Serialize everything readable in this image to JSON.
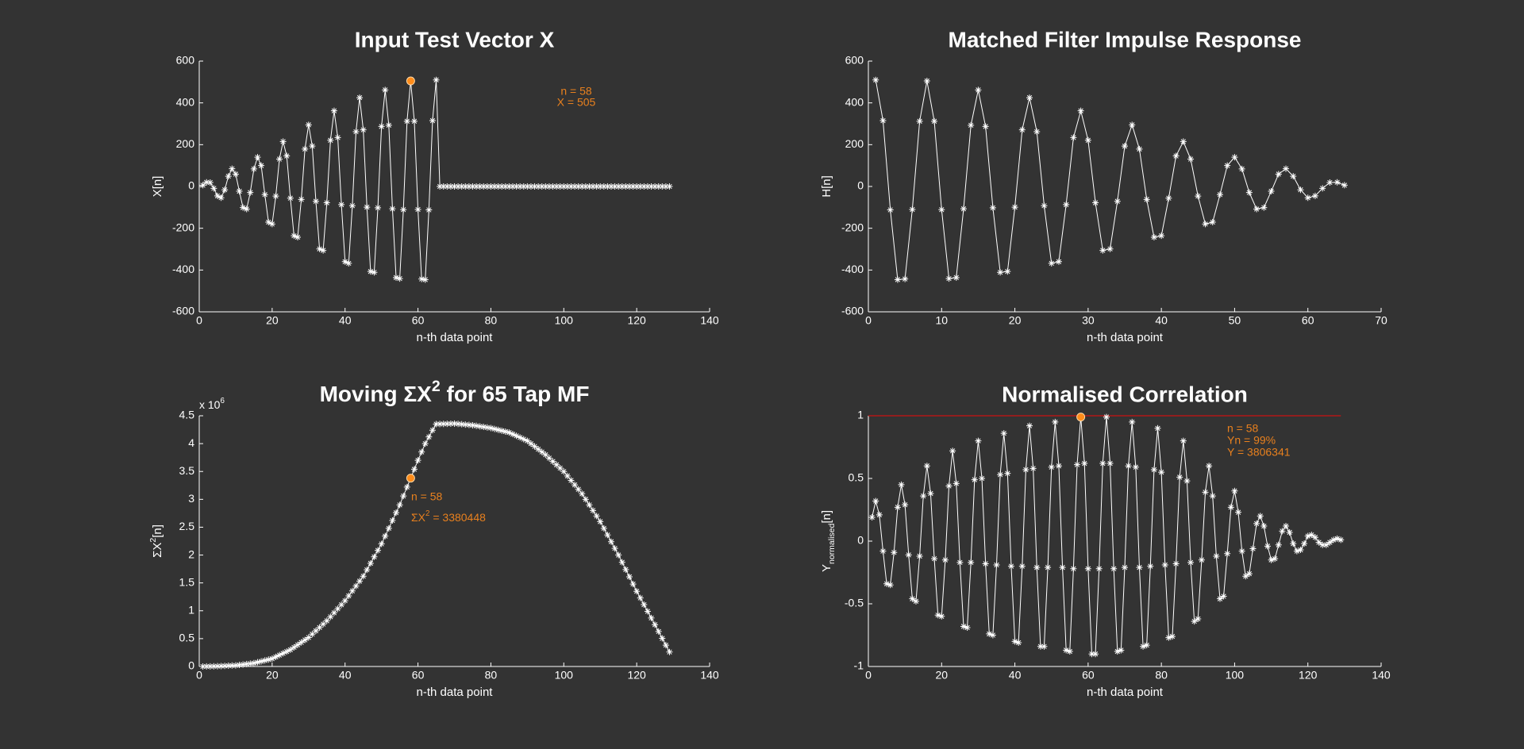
{
  "chart_data": [
    {
      "type": "line",
      "title": "Input Test Vector X",
      "xlabel": "n-th data point",
      "ylabel": "X[n]",
      "color": "#ffffff",
      "point_marker": "asterisk",
      "x": [
        1,
        2,
        3,
        4,
        5,
        6,
        7,
        8,
        9,
        10,
        11,
        12,
        13,
        14,
        15,
        16,
        17,
        18,
        19,
        20,
        21,
        22,
        23,
        24,
        25,
        26,
        27,
        28,
        29,
        30,
        31,
        32,
        33,
        34,
        35,
        36,
        37,
        38,
        39,
        40,
        41,
        42,
        43,
        44,
        45,
        46,
        47,
        48,
        49,
        50,
        51,
        52,
        53,
        54,
        55,
        56,
        57,
        58,
        59,
        60,
        61,
        62,
        63,
        64,
        65,
        66,
        67,
        68,
        69,
        70,
        71,
        72,
        73,
        74,
        75,
        76,
        77,
        78,
        79,
        80,
        81,
        82,
        83,
        84,
        85,
        86,
        87,
        88,
        89,
        90,
        91,
        92,
        93,
        94,
        95,
        96,
        97,
        98,
        99,
        100,
        101,
        102,
        103,
        104,
        105,
        106,
        107,
        108,
        109,
        110,
        111,
        112,
        113,
        114,
        115,
        116,
        117,
        118,
        119,
        120,
        121,
        122,
        123,
        124,
        125,
        126,
        127,
        128,
        129
      ],
      "values": [
        6,
        20,
        19,
        -9,
        -45,
        -54,
        -16,
        49,
        85,
        59,
        -23,
        -101,
        -108,
        -29,
        84,
        140,
        100,
        -39,
        -171,
        -180,
        -46,
        131,
        215,
        146,
        -56,
        -236,
        -243,
        -62,
        179,
        295,
        193,
        -71,
        -299,
        -306,
        -78,
        221,
        362,
        234,
        -87,
        -360,
        -368,
        -92,
        262,
        425,
        271,
        -99,
        -407,
        -411,
        -102,
        287,
        462,
        293,
        -107,
        -436,
        -441,
        -111,
        312,
        505,
        312,
        -110,
        -443,
        -446,
        -112,
        315,
        510,
        0,
        0,
        0,
        0,
        0,
        0,
        0,
        0,
        0,
        0,
        0,
        0,
        0,
        0,
        0,
        0,
        0,
        0,
        0,
        0,
        0,
        0,
        0,
        0,
        0,
        0,
        0,
        0,
        0,
        0,
        0,
        0,
        0,
        0,
        0,
        0,
        0,
        0,
        0,
        0,
        0,
        0,
        0,
        0,
        0,
        0,
        0,
        0,
        0,
        0,
        0,
        0,
        0,
        0,
        0,
        0,
        0,
        0,
        0,
        0,
        0,
        0,
        0,
        0
      ],
      "xlim": [
        0,
        140
      ],
      "xticks": [
        0,
        20,
        40,
        60,
        80,
        100,
        120,
        140
      ],
      "ylim": [
        -600,
        600
      ],
      "yticks": [
        -600,
        -400,
        -200,
        0,
        200,
        400,
        600
      ],
      "highlight": {
        "x": 58,
        "y": 505,
        "color": "#ff8c1a"
      },
      "annotation": [
        "n = 58",
        "X = 505"
      ]
    },
    {
      "type": "line",
      "title": "Matched Filter Impulse Response",
      "xlabel": "n-th data point",
      "ylabel": "H[n]",
      "color": "#ffffff",
      "point_marker": "asterisk",
      "x": [
        1,
        2,
        3,
        4,
        5,
        6,
        7,
        8,
        9,
        10,
        11,
        12,
        13,
        14,
        15,
        16,
        17,
        18,
        19,
        20,
        21,
        22,
        23,
        24,
        25,
        26,
        27,
        28,
        29,
        30,
        31,
        32,
        33,
        34,
        35,
        36,
        37,
        38,
        39,
        40,
        41,
        42,
        43,
        44,
        45,
        46,
        47,
        48,
        49,
        50,
        51,
        52,
        53,
        54,
        55,
        56,
        57,
        58,
        59,
        60,
        61,
        62,
        63,
        64,
        65
      ],
      "values": [
        510,
        315,
        -112,
        -446,
        -443,
        -110,
        312,
        505,
        312,
        -111,
        -441,
        -436,
        -107,
        293,
        462,
        287,
        -102,
        -411,
        -407,
        -99,
        271,
        425,
        262,
        -92,
        -368,
        -360,
        -87,
        234,
        362,
        221,
        -78,
        -306,
        -299,
        -71,
        193,
        295,
        179,
        -62,
        -243,
        -236,
        -56,
        146,
        215,
        131,
        -46,
        -180,
        -171,
        -39,
        100,
        140,
        84,
        -29,
        -108,
        -101,
        -23,
        59,
        85,
        49,
        -16,
        -54,
        -45,
        -9,
        19,
        20,
        6
      ],
      "xlim": [
        0,
        70
      ],
      "xticks": [
        0,
        10,
        20,
        30,
        40,
        50,
        60,
        70
      ],
      "ylim": [
        -600,
        600
      ],
      "yticks": [
        -600,
        -400,
        -200,
        0,
        200,
        400,
        600
      ]
    },
    {
      "type": "line",
      "title": [
        {
          "text": "Moving ΣX"
        },
        {
          "sup": "2"
        },
        {
          "text": " for 65 Tap MF"
        }
      ],
      "xlabel": "n-th data point",
      "ylabel": [
        {
          "text": "ΣX"
        },
        {
          "sup": "2"
        },
        {
          "text": "[n]"
        }
      ],
      "y_multiplier": [
        {
          "text": "x 10"
        },
        {
          "sup": "6"
        }
      ],
      "color": "#ffffff",
      "point_marker": "asterisk",
      "x": [
        1,
        2,
        3,
        4,
        5,
        6,
        7,
        8,
        9,
        10,
        11,
        12,
        13,
        14,
        15,
        16,
        17,
        18,
        19,
        20,
        21,
        22,
        23,
        24,
        25,
        26,
        27,
        28,
        29,
        30,
        31,
        32,
        33,
        34,
        35,
        36,
        37,
        38,
        39,
        40,
        41,
        42,
        43,
        44,
        45,
        46,
        47,
        48,
        49,
        50,
        51,
        52,
        53,
        54,
        55,
        56,
        57,
        58,
        59,
        60,
        61,
        62,
        63,
        64,
        65,
        66,
        67,
        68,
        69,
        70,
        71,
        72,
        73,
        74,
        75,
        76,
        77,
        78,
        79,
        80,
        81,
        82,
        83,
        84,
        85,
        86,
        87,
        88,
        89,
        90,
        91,
        92,
        93,
        94,
        95,
        96,
        97,
        98,
        99,
        100,
        101,
        102,
        103,
        104,
        105,
        106,
        107,
        108,
        109,
        110,
        111,
        112,
        113,
        114,
        115,
        116,
        117,
        118,
        119,
        120,
        121,
        122,
        123,
        124,
        125,
        126,
        127,
        128,
        129
      ],
      "values": [
        0,
        1000,
        2000,
        4000,
        5000,
        8000,
        11000,
        14000,
        17000,
        20000,
        28000,
        36000,
        44000,
        52000,
        60000,
        76000,
        92000,
        108000,
        124000,
        140000,
        172000,
        204000,
        236000,
        268000,
        300000,
        344000,
        388000,
        432000,
        476000,
        520000,
        580000,
        640000,
        700000,
        760000,
        820000,
        892000,
        964000,
        1036000,
        1108000,
        1180000,
        1268000,
        1356000,
        1444000,
        1532000,
        1620000,
        1736000,
        1852000,
        1968000,
        2084000,
        2200000,
        2340000,
        2480000,
        2620000,
        2760000,
        2900000,
        3060000,
        3220000,
        3380448,
        3540000,
        3700000,
        3850000,
        4000000,
        4120000,
        4240000,
        4350000,
        4352000,
        4354000,
        4356000,
        4358000,
        4360000,
        4354000,
        4348000,
        4342000,
        4336000,
        4330000,
        4320000,
        4310000,
        4300000,
        4290000,
        4280000,
        4264000,
        4248000,
        4232000,
        4216000,
        4200000,
        4170000,
        4140000,
        4110000,
        4080000,
        4050000,
        4000000,
        3950000,
        3900000,
        3850000,
        3800000,
        3740000,
        3680000,
        3620000,
        3560000,
        3500000,
        3420000,
        3340000,
        3260000,
        3180000,
        3100000,
        3000000,
        2900000,
        2800000,
        2700000,
        2600000,
        2480000,
        2360000,
        2240000,
        2120000,
        2000000,
        1870000,
        1740000,
        1610000,
        1480000,
        1350000,
        1230000,
        1110000,
        990000,
        870000,
        750000,
        628000,
        505000,
        383000,
        260000
      ],
      "xlim": [
        0,
        140
      ],
      "xticks": [
        0,
        20,
        40,
        60,
        80,
        100,
        120,
        140
      ],
      "ylim": [
        0,
        4500000
      ],
      "yticks": [
        0,
        {
          "value": 500000,
          "label": "0.5"
        },
        {
          "value": 1000000,
          "label": "1"
        },
        {
          "value": 1500000,
          "label": "1.5"
        },
        {
          "value": 2000000,
          "label": "2"
        },
        {
          "value": 2500000,
          "label": "2.5"
        },
        {
          "value": 3000000,
          "label": "3"
        },
        {
          "value": 3500000,
          "label": "3.5"
        },
        {
          "value": 4000000,
          "label": "4"
        },
        {
          "value": 4500000,
          "label": "4.5"
        }
      ],
      "highlight": {
        "x": 58,
        "y": 3380448,
        "color": "#ff8c1a"
      },
      "annotation": [
        "n = 58",
        [
          {
            "text": "ΣX"
          },
          {
            "sup": "2"
          },
          {
            "text": " = 3380448"
          }
        ]
      ]
    },
    {
      "type": "line",
      "title": "Normalised Correlation",
      "xlabel": "n-th data point",
      "ylabel": [
        {
          "text": "Y"
        },
        {
          "sub": "normalised"
        },
        {
          "text": "[n]"
        }
      ],
      "color": "#ffffff",
      "point_marker": "asterisk",
      "x": [
        1,
        2,
        3,
        4,
        5,
        6,
        7,
        8,
        9,
        10,
        11,
        12,
        13,
        14,
        15,
        16,
        17,
        18,
        19,
        20,
        21,
        22,
        23,
        24,
        25,
        26,
        27,
        28,
        29,
        30,
        31,
        32,
        33,
        34,
        35,
        36,
        37,
        38,
        39,
        40,
        41,
        42,
        43,
        44,
        45,
        46,
        47,
        48,
        49,
        50,
        51,
        52,
        53,
        54,
        55,
        56,
        57,
        58,
        59,
        60,
        61,
        62,
        63,
        64,
        65,
        66,
        67,
        68,
        69,
        70,
        71,
        72,
        73,
        74,
        75,
        76,
        77,
        78,
        79,
        80,
        81,
        82,
        83,
        84,
        85,
        86,
        87,
        88,
        89,
        90,
        91,
        92,
        93,
        94,
        95,
        96,
        97,
        98,
        99,
        100,
        101,
        102,
        103,
        104,
        105,
        106,
        107,
        108,
        109,
        110,
        111,
        112,
        113,
        114,
        115,
        116,
        117,
        118,
        119,
        120,
        121,
        122,
        123,
        124,
        125,
        126,
        127,
        128,
        129
      ],
      "values": [
        0.19,
        0.32,
        0.21,
        -0.08,
        -0.34,
        -0.35,
        -0.09,
        0.27,
        0.45,
        0.29,
        -0.11,
        -0.46,
        -0.48,
        -0.12,
        0.36,
        0.6,
        0.38,
        -0.14,
        -0.59,
        -0.6,
        -0.15,
        0.44,
        0.72,
        0.46,
        -0.17,
        -0.68,
        -0.69,
        -0.17,
        0.49,
        0.8,
        0.5,
        -0.18,
        -0.74,
        -0.75,
        -0.19,
        0.53,
        0.86,
        0.54,
        -0.2,
        -0.8,
        -0.81,
        -0.2,
        0.57,
        0.92,
        0.58,
        -0.21,
        -0.84,
        -0.84,
        -0.21,
        0.59,
        0.95,
        0.6,
        -0.21,
        -0.87,
        -0.88,
        -0.22,
        0.61,
        0.99,
        0.62,
        -0.22,
        -0.9,
        -0.9,
        -0.22,
        0.62,
        0.99,
        0.62,
        -0.22,
        -0.88,
        -0.87,
        -0.21,
        0.6,
        0.95,
        0.59,
        -0.21,
        -0.84,
        -0.83,
        -0.2,
        0.57,
        0.9,
        0.55,
        -0.19,
        -0.77,
        -0.76,
        -0.18,
        0.51,
        0.8,
        0.48,
        -0.17,
        -0.64,
        -0.62,
        -0.15,
        0.39,
        0.6,
        0.36,
        -0.12,
        -0.46,
        -0.44,
        -0.1,
        0.27,
        0.4,
        0.23,
        -0.08,
        -0.28,
        -0.26,
        -0.06,
        0.14,
        0.2,
        0.12,
        -0.04,
        -0.15,
        -0.14,
        -0.03,
        0.08,
        0.12,
        0.07,
        -0.02,
        -0.08,
        -0.07,
        -0.02,
        0.04,
        0.05,
        0.03,
        -0.01,
        -0.03,
        -0.03,
        -0.01,
        0.01,
        0.02,
        0.01
      ],
      "xlim": [
        0,
        140
      ],
      "xticks": [
        0,
        20,
        40,
        60,
        80,
        100,
        120,
        140
      ],
      "ylim": [
        -1,
        1
      ],
      "yticks": [
        -1,
        -0.5,
        0,
        0.5,
        1
      ],
      "hline": {
        "y": 1,
        "color": "#cc1111"
      },
      "highlight": {
        "x": 58,
        "y": 0.99,
        "color": "#ff8c1a"
      },
      "annotation": [
        "n = 58",
        "Yn = 99%",
        "Y = 3806341"
      ]
    }
  ]
}
